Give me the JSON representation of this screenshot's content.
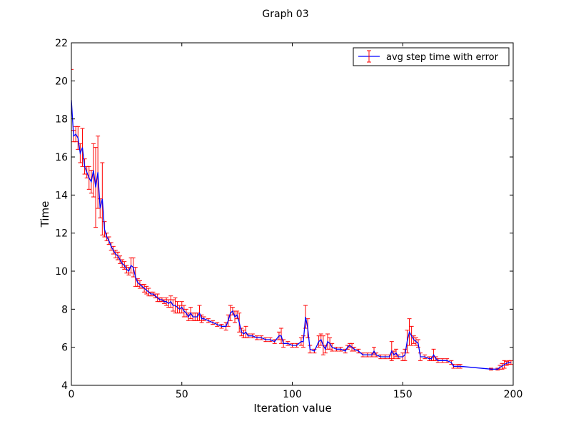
{
  "chart_data": {
    "type": "line",
    "title": "Graph 03",
    "xlabel": "Iteration value",
    "ylabel": "Time",
    "xlim": [
      0,
      200
    ],
    "ylim": [
      4,
      22
    ],
    "x_ticks": [
      0,
      50,
      100,
      150,
      200
    ],
    "y_ticks": [
      4,
      6,
      8,
      10,
      12,
      14,
      16,
      18,
      20,
      22
    ],
    "grid": false,
    "legend": {
      "position": "top-right"
    },
    "series": [
      {
        "name": "avg step time with error",
        "line_color": "#0000ff",
        "error_color": "#ff0000",
        "points": [
          {
            "x": 0,
            "y": 19.0,
            "err": 1.6
          },
          {
            "x": 1,
            "y": 17.1,
            "err": 0.3
          },
          {
            "x": 2,
            "y": 17.2,
            "err": 0.4
          },
          {
            "x": 3,
            "y": 17.0,
            "err": 0.6
          },
          {
            "x": 4,
            "y": 16.2,
            "err": 0.5
          },
          {
            "x": 5,
            "y": 16.5,
            "err": 1.0
          },
          {
            "x": 6,
            "y": 15.5,
            "err": 0.4
          },
          {
            "x": 7,
            "y": 15.2,
            "err": 0.3
          },
          {
            "x": 8,
            "y": 14.9,
            "err": 0.6
          },
          {
            "x": 9,
            "y": 14.7,
            "err": 0.6
          },
          {
            "x": 10,
            "y": 15.3,
            "err": 1.4
          },
          {
            "x": 11,
            "y": 14.4,
            "err": 2.1
          },
          {
            "x": 12,
            "y": 15.2,
            "err": 1.9
          },
          {
            "x": 13,
            "y": 13.3,
            "err": 0.5
          },
          {
            "x": 14,
            "y": 13.8,
            "err": 1.9
          },
          {
            "x": 15,
            "y": 12.2,
            "err": 0.4
          },
          {
            "x": 16,
            "y": 11.8,
            "err": 0.2
          },
          {
            "x": 17,
            "y": 11.6,
            "err": 0.2
          },
          {
            "x": 18,
            "y": 11.3,
            "err": 0.2
          },
          {
            "x": 19,
            "y": 11.1,
            "err": 0.2
          },
          {
            "x": 20,
            "y": 10.9,
            "err": 0.2
          },
          {
            "x": 21,
            "y": 10.8,
            "err": 0.2
          },
          {
            "x": 22,
            "y": 10.6,
            "err": 0.2
          },
          {
            "x": 23,
            "y": 10.4,
            "err": 0.2
          },
          {
            "x": 24,
            "y": 10.3,
            "err": 0.2
          },
          {
            "x": 25,
            "y": 10.1,
            "err": 0.2
          },
          {
            "x": 26,
            "y": 10.0,
            "err": 0.2
          },
          {
            "x": 27,
            "y": 10.3,
            "err": 0.4
          },
          {
            "x": 28,
            "y": 10.2,
            "err": 0.5
          },
          {
            "x": 29,
            "y": 9.7,
            "err": 0.5
          },
          {
            "x": 30,
            "y": 9.4,
            "err": 0.2
          },
          {
            "x": 31,
            "y": 9.3,
            "err": 0.2
          },
          {
            "x": 32,
            "y": 9.2,
            "err": 0.1
          },
          {
            "x": 33,
            "y": 9.1,
            "err": 0.2
          },
          {
            "x": 34,
            "y": 9.0,
            "err": 0.2
          },
          {
            "x": 35,
            "y": 8.9,
            "err": 0.2
          },
          {
            "x": 36,
            "y": 8.8,
            "err": 0.1
          },
          {
            "x": 37,
            "y": 8.8,
            "err": 0.1
          },
          {
            "x": 38,
            "y": 8.7,
            "err": 0.1
          },
          {
            "x": 39,
            "y": 8.6,
            "err": 0.2
          },
          {
            "x": 40,
            "y": 8.5,
            "err": 0.1
          },
          {
            "x": 41,
            "y": 8.5,
            "err": 0.1
          },
          {
            "x": 42,
            "y": 8.4,
            "err": 0.1
          },
          {
            "x": 43,
            "y": 8.4,
            "err": 0.2
          },
          {
            "x": 44,
            "y": 8.3,
            "err": 0.2
          },
          {
            "x": 45,
            "y": 8.4,
            "err": 0.3
          },
          {
            "x": 46,
            "y": 8.2,
            "err": 0.3
          },
          {
            "x": 47,
            "y": 8.2,
            "err": 0.4
          },
          {
            "x": 48,
            "y": 8.1,
            "err": 0.3
          },
          {
            "x": 49,
            "y": 8.0,
            "err": 0.2
          },
          {
            "x": 50,
            "y": 8.1,
            "err": 0.3
          },
          {
            "x": 51,
            "y": 7.9,
            "err": 0.3
          },
          {
            "x": 52,
            "y": 7.8,
            "err": 0.2
          },
          {
            "x": 53,
            "y": 7.6,
            "err": 0.2
          },
          {
            "x": 54,
            "y": 7.8,
            "err": 0.3
          },
          {
            "x": 55,
            "y": 7.6,
            "err": 0.2
          },
          {
            "x": 56,
            "y": 7.6,
            "err": 0.2
          },
          {
            "x": 57,
            "y": 7.6,
            "err": 0.2
          },
          {
            "x": 58,
            "y": 7.8,
            "err": 0.4
          },
          {
            "x": 59,
            "y": 7.5,
            "err": 0.2
          },
          {
            "x": 60,
            "y": 7.5,
            "err": 0.1
          },
          {
            "x": 62,
            "y": 7.4,
            "err": 0.1
          },
          {
            "x": 64,
            "y": 7.3,
            "err": 0.1
          },
          {
            "x": 66,
            "y": 7.2,
            "err": 0.1
          },
          {
            "x": 68,
            "y": 7.1,
            "err": 0.1
          },
          {
            "x": 70,
            "y": 7.1,
            "err": 0.2
          },
          {
            "x": 71,
            "y": 7.4,
            "err": 0.3
          },
          {
            "x": 72,
            "y": 7.8,
            "err": 0.4
          },
          {
            "x": 73,
            "y": 7.9,
            "err": 0.2
          },
          {
            "x": 74,
            "y": 7.6,
            "err": 0.3
          },
          {
            "x": 75,
            "y": 7.7,
            "err": 0.2
          },
          {
            "x": 76,
            "y": 7.3,
            "err": 0.5
          },
          {
            "x": 77,
            "y": 6.8,
            "err": 0.2
          },
          {
            "x": 78,
            "y": 6.7,
            "err": 0.2
          },
          {
            "x": 79,
            "y": 6.8,
            "err": 0.3
          },
          {
            "x": 80,
            "y": 6.6,
            "err": 0.1
          },
          {
            "x": 82,
            "y": 6.6,
            "err": 0.1
          },
          {
            "x": 84,
            "y": 6.5,
            "err": 0.1
          },
          {
            "x": 86,
            "y": 6.5,
            "err": 0.1
          },
          {
            "x": 88,
            "y": 6.4,
            "err": 0.1
          },
          {
            "x": 90,
            "y": 6.4,
            "err": 0.1
          },
          {
            "x": 92,
            "y": 6.3,
            "err": 0.1
          },
          {
            "x": 94,
            "y": 6.6,
            "err": 0.2
          },
          {
            "x": 95,
            "y": 6.6,
            "err": 0.4
          },
          {
            "x": 96,
            "y": 6.2,
            "err": 0.2
          },
          {
            "x": 98,
            "y": 6.2,
            "err": 0.1
          },
          {
            "x": 100,
            "y": 6.1,
            "err": 0.1
          },
          {
            "x": 102,
            "y": 6.1,
            "err": 0.1
          },
          {
            "x": 104,
            "y": 6.3,
            "err": 0.2
          },
          {
            "x": 105,
            "y": 6.3,
            "err": 0.3
          },
          {
            "x": 106,
            "y": 7.6,
            "err": 0.6
          },
          {
            "x": 107,
            "y": 7.0,
            "err": 0.5
          },
          {
            "x": 108,
            "y": 5.9,
            "err": 0.2
          },
          {
            "x": 110,
            "y": 5.8,
            "err": 0.1
          },
          {
            "x": 112,
            "y": 6.3,
            "err": 0.3
          },
          {
            "x": 113,
            "y": 6.4,
            "err": 0.3
          },
          {
            "x": 114,
            "y": 6.1,
            "err": 0.5
          },
          {
            "x": 115,
            "y": 5.9,
            "err": 0.2
          },
          {
            "x": 116,
            "y": 6.3,
            "err": 0.4
          },
          {
            "x": 117,
            "y": 6.2,
            "err": 0.3
          },
          {
            "x": 118,
            "y": 6.0,
            "err": 0.2
          },
          {
            "x": 120,
            "y": 5.9,
            "err": 0.1
          },
          {
            "x": 122,
            "y": 5.9,
            "err": 0.1
          },
          {
            "x": 124,
            "y": 5.8,
            "err": 0.1
          },
          {
            "x": 125,
            "y": 6.0,
            "err": 0.1
          },
          {
            "x": 126,
            "y": 6.1,
            "err": 0.1
          },
          {
            "x": 127,
            "y": 6.0,
            "err": 0.2
          },
          {
            "x": 128,
            "y": 5.9,
            "err": 0.1
          },
          {
            "x": 130,
            "y": 5.8,
            "err": 0.1
          },
          {
            "x": 132,
            "y": 5.6,
            "err": 0.1
          },
          {
            "x": 134,
            "y": 5.6,
            "err": 0.1
          },
          {
            "x": 136,
            "y": 5.6,
            "err": 0.1
          },
          {
            "x": 137,
            "y": 5.8,
            "err": 0.2
          },
          {
            "x": 138,
            "y": 5.6,
            "err": 0.1
          },
          {
            "x": 140,
            "y": 5.5,
            "err": 0.1
          },
          {
            "x": 142,
            "y": 5.5,
            "err": 0.1
          },
          {
            "x": 144,
            "y": 5.5,
            "err": 0.1
          },
          {
            "x": 145,
            "y": 5.8,
            "err": 0.5
          },
          {
            "x": 146,
            "y": 5.6,
            "err": 0.2
          },
          {
            "x": 147,
            "y": 5.7,
            "err": 0.2
          },
          {
            "x": 148,
            "y": 5.5,
            "err": 0.1
          },
          {
            "x": 150,
            "y": 5.5,
            "err": 0.2
          },
          {
            "x": 151,
            "y": 5.6,
            "err": 0.3
          },
          {
            "x": 152,
            "y": 6.3,
            "err": 0.6
          },
          {
            "x": 153,
            "y": 6.8,
            "err": 0.7
          },
          {
            "x": 154,
            "y": 6.6,
            "err": 0.5
          },
          {
            "x": 155,
            "y": 6.4,
            "err": 0.2
          },
          {
            "x": 156,
            "y": 6.3,
            "err": 0.2
          },
          {
            "x": 157,
            "y": 6.2,
            "err": 0.2
          },
          {
            "x": 158,
            "y": 5.5,
            "err": 0.2
          },
          {
            "x": 160,
            "y": 5.5,
            "err": 0.1
          },
          {
            "x": 162,
            "y": 5.4,
            "err": 0.1
          },
          {
            "x": 163,
            "y": 5.4,
            "err": 0.1
          },
          {
            "x": 164,
            "y": 5.6,
            "err": 0.3
          },
          {
            "x": 165,
            "y": 5.4,
            "err": 0.1
          },
          {
            "x": 166,
            "y": 5.3,
            "err": 0.1
          },
          {
            "x": 168,
            "y": 5.3,
            "err": 0.1
          },
          {
            "x": 170,
            "y": 5.3,
            "err": 0.1
          },
          {
            "x": 172,
            "y": 5.2,
            "err": 0.1
          },
          {
            "x": 173,
            "y": 5.0,
            "err": 0.1
          },
          {
            "x": 175,
            "y": 5.0,
            "err": 0.1
          },
          {
            "x": 176,
            "y": 5.0,
            "err": 0.1
          },
          {
            "x": 190,
            "y": 4.85,
            "err": 0.05
          },
          {
            "x": 193,
            "y": 4.85,
            "err": 0.05
          },
          {
            "x": 194,
            "y": 4.95,
            "err": 0.1
          },
          {
            "x": 195,
            "y": 5.0,
            "err": 0.15
          },
          {
            "x": 196,
            "y": 5.1,
            "err": 0.2
          },
          {
            "x": 197,
            "y": 5.15,
            "err": 0.1
          },
          {
            "x": 198,
            "y": 5.2,
            "err": 0.1
          },
          {
            "x": 199,
            "y": 5.2,
            "err": 0.1
          }
        ]
      }
    ]
  }
}
